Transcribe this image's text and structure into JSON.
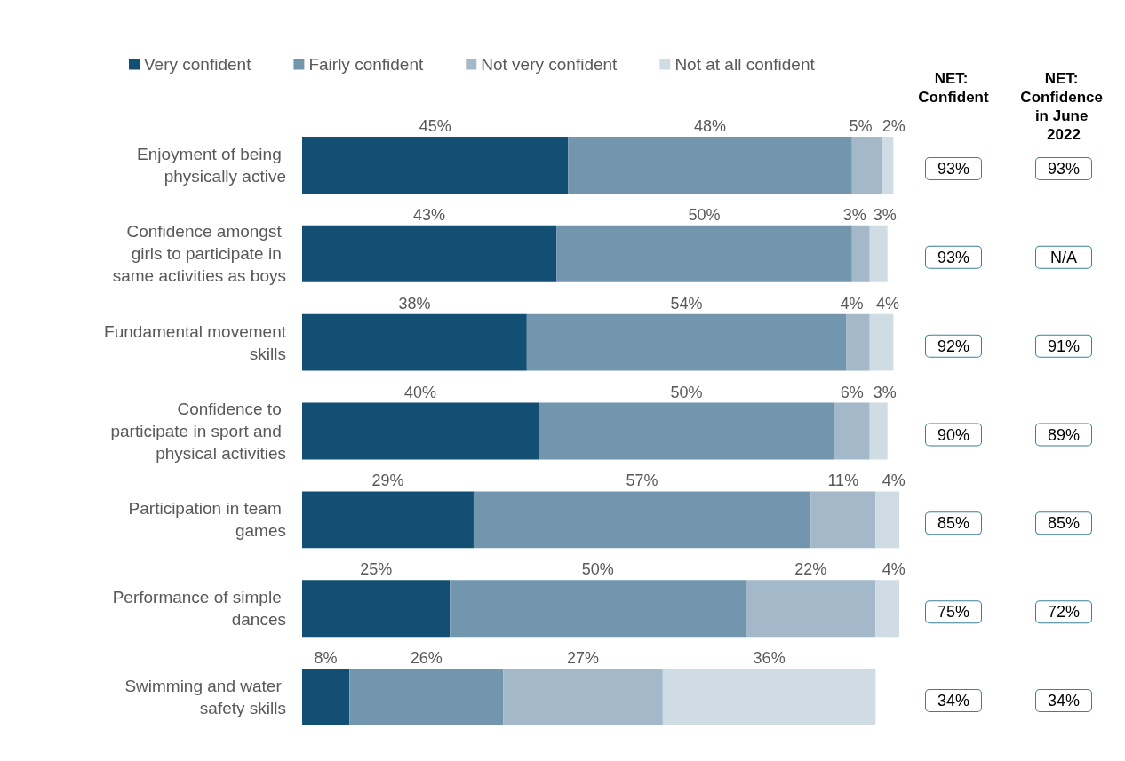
{
  "chart_data": {
    "type": "bar",
    "orientation": "horizontal",
    "stacked": true,
    "legend": "top left",
    "categories": [
      "Enjoyment of being physically active",
      "Confidence amongst girls to participate in same activities as boys",
      "Fundamental movement skills",
      "Confidence to participate in sport and physical activities",
      "Participation in team games",
      "Performance of simple dances",
      "Swimming and water safety skills"
    ],
    "xlim": [
      0,
      101
    ],
    "series": [
      {
        "name": "Very confident",
        "color": "#134f72",
        "values": [
          45,
          43,
          38,
          40,
          29,
          25,
          8
        ],
        "value_labels": [
          "45%",
          "43%",
          "38%",
          "40%",
          "29%",
          "25%",
          "8%"
        ]
      },
      {
        "name": "Fairly confident",
        "color": "#7196ae",
        "values": [
          48,
          50,
          54,
          50,
          57,
          50,
          26
        ],
        "value_labels": [
          "48%",
          "50%",
          "54%",
          "50%",
          "57%",
          "50%",
          "26%"
        ]
      },
      {
        "name": "Not very confident",
        "color": "#a3b8c8",
        "values": [
          5,
          3,
          4,
          6,
          11,
          22,
          27
        ],
        "value_labels": [
          "5%",
          "3%",
          "4%",
          "6%",
          "11%",
          "22%",
          "27%"
        ]
      },
      {
        "name": "Not at all confident",
        "color": "#d0dce4",
        "values": [
          2,
          3,
          4,
          3,
          4,
          4,
          36
        ],
        "value_labels": [
          "2%",
          "3%",
          "4%",
          "3%",
          "4%",
          "4%",
          "36%"
        ]
      }
    ],
    "annotations": [
      "NET: Confident",
      "NET: Confidence in June 2022",
      "93%",
      "93%",
      "93%",
      "N/A",
      "92%",
      "91%",
      "90%",
      "89%",
      "85%",
      "85%",
      "75%",
      "72%",
      "34%",
      "34%"
    ]
  }
}
